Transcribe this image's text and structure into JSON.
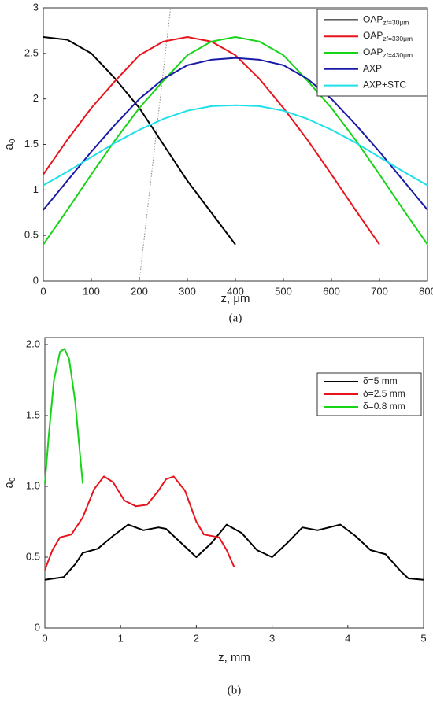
{
  "chart_data": [
    {
      "type": "line",
      "caption": "(a)",
      "xlabel": "z, μm",
      "ylabel": "a",
      "ylabel_subscript": "0",
      "xlim": [
        0,
        800
      ],
      "ylim": [
        0,
        3
      ],
      "xticks": [
        0,
        100,
        200,
        300,
        400,
        500,
        600,
        700,
        800
      ],
      "yticks": [
        0,
        0.5,
        1,
        1.5,
        2,
        2.5,
        3
      ],
      "legend": "upper right",
      "guide_line": {
        "color": "#888888",
        "x": [
          200,
          265
        ],
        "y": [
          0,
          3
        ]
      },
      "series": [
        {
          "name": "OAP",
          "subscript": "zf=30μm",
          "color": "#000000",
          "x": [
            0,
            50,
            100,
            150,
            200,
            250,
            300,
            350,
            400
          ],
          "values": [
            2.68,
            2.65,
            2.5,
            2.22,
            1.9,
            1.5,
            1.1,
            0.75,
            0.4
          ]
        },
        {
          "name": "OAP",
          "subscript": "zf=330μm",
          "color": "#e8141c",
          "x": [
            0,
            50,
            100,
            150,
            200,
            250,
            300,
            350,
            400,
            450,
            500,
            550,
            600,
            650,
            700
          ],
          "values": [
            1.17,
            1.55,
            1.9,
            2.2,
            2.48,
            2.63,
            2.68,
            2.63,
            2.48,
            2.22,
            1.9,
            1.55,
            1.17,
            0.78,
            0.4
          ]
        },
        {
          "name": "OAP",
          "subscript": "zf=430μm",
          "color": "#16d416",
          "x": [
            0,
            50,
            100,
            150,
            200,
            250,
            300,
            350,
            400,
            450,
            500,
            550,
            600,
            650,
            700,
            750,
            800
          ],
          "values": [
            0.4,
            0.78,
            1.17,
            1.55,
            1.9,
            2.2,
            2.48,
            2.63,
            2.68,
            2.63,
            2.48,
            2.2,
            1.9,
            1.55,
            1.17,
            0.78,
            0.4
          ]
        },
        {
          "name": "AXP",
          "color": "#1a1aa8",
          "x": [
            0,
            50,
            100,
            150,
            200,
            250,
            300,
            350,
            400,
            450,
            500,
            550,
            600,
            650,
            700,
            750,
            800
          ],
          "values": [
            0.78,
            1.1,
            1.42,
            1.72,
            2.0,
            2.22,
            2.37,
            2.43,
            2.45,
            2.43,
            2.37,
            2.22,
            2.0,
            1.72,
            1.42,
            1.1,
            0.78
          ]
        },
        {
          "name": "AXP+STC",
          "color": "#1ee0e8",
          "x": [
            0,
            50,
            100,
            150,
            200,
            250,
            300,
            350,
            400,
            450,
            500,
            550,
            600,
            650,
            700,
            750,
            800
          ],
          "values": [
            1.05,
            1.2,
            1.36,
            1.52,
            1.66,
            1.78,
            1.87,
            1.92,
            1.93,
            1.92,
            1.87,
            1.78,
            1.66,
            1.52,
            1.36,
            1.2,
            1.05
          ]
        }
      ]
    },
    {
      "type": "line",
      "caption": "(b)",
      "xlabel": "z, mm",
      "ylabel": "a",
      "ylabel_subscript": "0",
      "xlim": [
        0,
        5
      ],
      "ylim": [
        0,
        2.05
      ],
      "xticks": [
        0,
        1,
        2,
        3,
        4,
        5
      ],
      "yticks": [
        0,
        0.5,
        {
          "value": 1,
          "label": "1.0"
        },
        1.5,
        {
          "value": 2,
          "label": "2.0"
        }
      ],
      "legend": "upper right",
      "series": [
        {
          "name": "δ=5 mm",
          "color": "#000000",
          "x": [
            0,
            0.25,
            0.4,
            0.5,
            0.7,
            0.9,
            1.1,
            1.3,
            1.5,
            1.6,
            1.8,
            2.0,
            2.2,
            2.4,
            2.6,
            2.8,
            3.0,
            3.2,
            3.4,
            3.6,
            3.9,
            4.1,
            4.3,
            4.5,
            4.7,
            4.8,
            5
          ],
          "values": [
            0.34,
            0.36,
            0.45,
            0.53,
            0.56,
            0.65,
            0.73,
            0.69,
            0.71,
            0.7,
            0.6,
            0.5,
            0.6,
            0.73,
            0.67,
            0.55,
            0.5,
            0.6,
            0.71,
            0.69,
            0.73,
            0.65,
            0.55,
            0.52,
            0.4,
            0.35,
            0.34
          ]
        },
        {
          "name": "δ=2.5 mm",
          "color": "#e8141c",
          "x": [
            0,
            0.1,
            0.2,
            0.35,
            0.5,
            0.65,
            0.78,
            0.9,
            1.05,
            1.2,
            1.35,
            1.5,
            1.6,
            1.7,
            1.85,
            2.0,
            2.1,
            2.3,
            2.4,
            2.5
          ],
          "values": [
            0.41,
            0.55,
            0.64,
            0.66,
            0.78,
            0.98,
            1.07,
            1.03,
            0.9,
            0.86,
            0.87,
            0.97,
            1.05,
            1.07,
            0.97,
            0.75,
            0.66,
            0.64,
            0.55,
            0.43
          ]
        },
        {
          "name": "δ=0.8 mm",
          "color": "#16d416",
          "x": [
            0,
            0.05,
            0.12,
            0.2,
            0.26,
            0.32,
            0.4,
            0.46,
            0.5
          ],
          "values": [
            1.02,
            1.35,
            1.75,
            1.95,
            1.97,
            1.9,
            1.6,
            1.25,
            1.02
          ]
        }
      ]
    }
  ]
}
